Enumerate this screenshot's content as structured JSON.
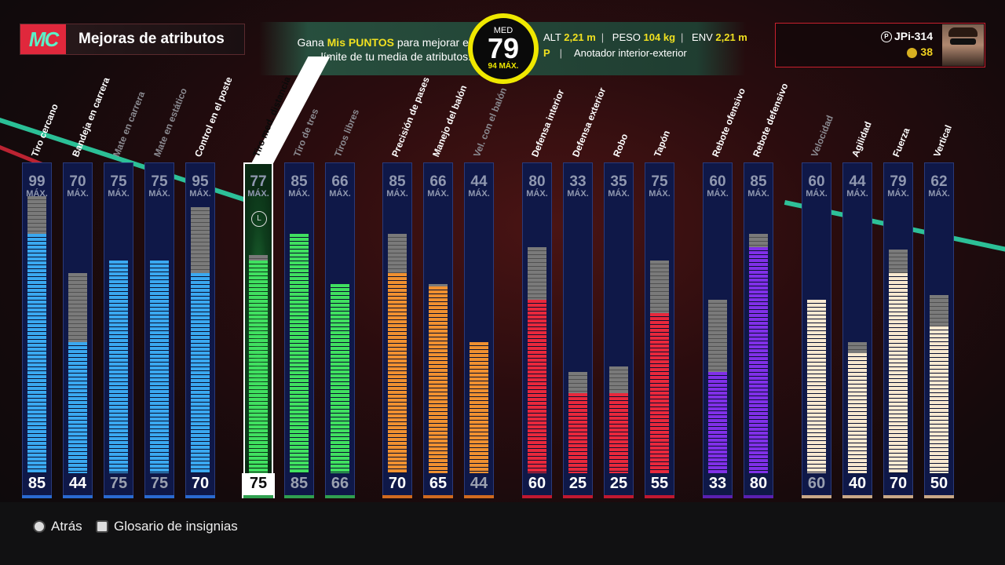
{
  "header": {
    "logo_text": "MC",
    "title": "Mejoras de atributos",
    "earn_prefix": "Gana ",
    "earn_highlight": "Mis PUNTOS",
    "earn_suffix": " para mejorar el límite de tu media de atributos.",
    "overall_label": "MED",
    "overall_value": "79",
    "overall_max": "94 MÁX.",
    "alt_label": "ALT",
    "alt_value": "2,21 m",
    "peso_label": "PESO",
    "peso_value": "104 kg",
    "env_label": "ENV",
    "env_value": "2,21 m",
    "position": "P",
    "archetype": "Anotador interior-exterior"
  },
  "player": {
    "gamertag": "JPi-314",
    "coins": "38"
  },
  "max_label": "MÁX.",
  "colors": {
    "blue": "#3aa8f0",
    "green": "#40e060",
    "orange": "#f09030",
    "red": "#e8283c",
    "purple": "#8030e8",
    "cream": "#f8e8d0"
  },
  "attributes": [
    {
      "label": "Tiro cercano",
      "max": "99",
      "current": "85",
      "group": "blue",
      "cur": 85,
      "cap": 99,
      "dim": false
    },
    {
      "label": "Bandeja en carrera",
      "max": "70",
      "current": "44",
      "group": "blue",
      "cur": 44,
      "cap": 70,
      "dim": false
    },
    {
      "label": "Mate en carrera",
      "max": "75",
      "current": "75",
      "group": "blue",
      "cur": 75,
      "cap": 75,
      "dim": true
    },
    {
      "label": "Mate en estático",
      "max": "75",
      "current": "75",
      "group": "blue",
      "cur": 75,
      "cap": 75,
      "dim": true
    },
    {
      "label": "Control en el poste",
      "max": "95",
      "current": "70",
      "group": "blue",
      "cur": 70,
      "cap": 95,
      "dim": false
    },
    {
      "label": "Tiro med. distancia",
      "max": "77",
      "current": "75",
      "group": "green",
      "cur": 75,
      "cap": 77,
      "dim": false,
      "selected": true
    },
    {
      "label": "Tiro de tres",
      "max": "85",
      "current": "85",
      "group": "green",
      "cur": 85,
      "cap": 85,
      "dim": true
    },
    {
      "label": "Tiros libres",
      "max": "66",
      "current": "66",
      "group": "green",
      "cur": 66,
      "cap": 66,
      "dim": true
    },
    {
      "label": "Precisión de pases",
      "max": "85",
      "current": "70",
      "group": "orange",
      "cur": 70,
      "cap": 85,
      "dim": false
    },
    {
      "label": "Manejo del balón",
      "max": "66",
      "current": "65",
      "group": "orange",
      "cur": 65,
      "cap": 66,
      "dim": false
    },
    {
      "label": "Vel. con el balón",
      "max": "44",
      "current": "44",
      "group": "orange",
      "cur": 44,
      "cap": 44,
      "dim": true
    },
    {
      "label": "Defensa interior",
      "max": "80",
      "current": "60",
      "group": "red",
      "cur": 60,
      "cap": 80,
      "dim": false
    },
    {
      "label": "Defensa exterior",
      "max": "33",
      "current": "25",
      "group": "red",
      "cur": 25,
      "cap": 33,
      "dim": false
    },
    {
      "label": "Robo",
      "max": "35",
      "current": "25",
      "group": "red",
      "cur": 25,
      "cap": 35,
      "dim": false
    },
    {
      "label": "Tapón",
      "max": "75",
      "current": "55",
      "group": "red",
      "cur": 55,
      "cap": 75,
      "dim": false
    },
    {
      "label": "Rebote ofensivo",
      "max": "60",
      "current": "33",
      "group": "purple",
      "cur": 33,
      "cap": 60,
      "dim": false
    },
    {
      "label": "Rebote defensivo",
      "max": "85",
      "current": "80",
      "group": "purple",
      "cur": 80,
      "cap": 85,
      "dim": false
    },
    {
      "label": "Velocidad",
      "max": "60",
      "current": "60",
      "group": "cream",
      "cur": 60,
      "cap": 60,
      "dim": true
    },
    {
      "label": "Agilidad",
      "max": "44",
      "current": "40",
      "group": "cream",
      "cur": 40,
      "cap": 44,
      "dim": false
    },
    {
      "label": "Fuerza",
      "max": "79",
      "current": "70",
      "group": "cream",
      "cur": 70,
      "cap": 79,
      "dim": false
    },
    {
      "label": "Vertical",
      "max": "62",
      "current": "50",
      "group": "cream",
      "cur": 50,
      "cap": 62,
      "dim": false
    }
  ],
  "footer": {
    "back_label": "Atrás",
    "glossary_label": "Glosario de insignias"
  }
}
